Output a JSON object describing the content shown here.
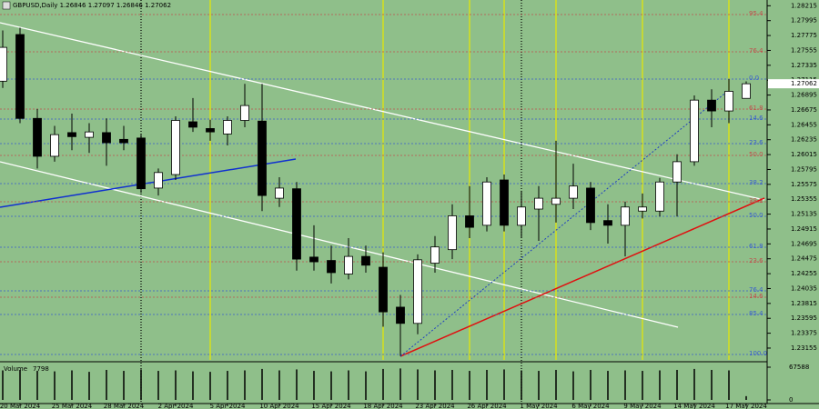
{
  "chart_data": {
    "type": "candlestick",
    "title": "GBPUSD,Daily  1.26846 1.27097 1.26846 1.27062",
    "categories": [
      null,
      "20 Mar 2024",
      null,
      null,
      "25 Mar 2024",
      null,
      null,
      "28 Mar 2024",
      null,
      null,
      "2 Apr 2024",
      null,
      null,
      "5 Apr 2024",
      null,
      null,
      "10 Apr 2024",
      null,
      null,
      "15 Apr 2024",
      null,
      null,
      "18 Apr 2024",
      null,
      null,
      "23 Apr 2024",
      null,
      null,
      "26 Apr 2024",
      null,
      null,
      "1 May 2024",
      null,
      null,
      "6 May 2024",
      null,
      null,
      "9 May 2024",
      null,
      null,
      "14 May 2024",
      null,
      null,
      "17 May 2024"
    ],
    "open": [
      1.271,
      1.2779,
      1.2655,
      1.2599,
      1.2634,
      1.2627,
      1.2634,
      1.2624,
      1.2626,
      1.2552,
      1.2572,
      1.265,
      1.264,
      1.2632,
      1.2652,
      1.2651,
      1.2537,
      1.2551,
      1.245,
      1.2445,
      1.2425,
      1.2451,
      1.2435,
      1.2376,
      1.2352,
      1.2441,
      1.2461,
      1.2511,
      1.2497,
      1.2564,
      1.2497,
      1.2521,
      1.2528,
      1.2537,
      1.2552,
      1.2504,
      1.2497,
      1.2518,
      1.2518,
      1.2561,
      1.2591,
      1.2682,
      1.2666,
      1.26846
    ],
    "high": [
      1.2785,
      1.2789,
      1.2669,
      1.2644,
      1.2662,
      1.2648,
      1.2655,
      1.2644,
      1.2631,
      1.2581,
      1.2658,
      1.2685,
      1.2653,
      1.2658,
      1.2706,
      1.2706,
      1.2568,
      1.2561,
      1.2497,
      1.2467,
      1.2478,
      1.2467,
      1.2457,
      1.2394,
      1.2454,
      1.2481,
      1.2528,
      1.2555,
      1.2568,
      1.2572,
      1.2548,
      1.2555,
      1.2622,
      1.2588,
      1.2561,
      1.2528,
      1.2532,
      1.2544,
      1.2567,
      1.2602,
      1.2689,
      1.2698,
      1.2713,
      1.27097
    ],
    "low": [
      1.27,
      1.2648,
      1.2581,
      1.2591,
      1.2608,
      1.2604,
      1.2585,
      1.2608,
      1.2545,
      1.2541,
      1.2564,
      1.2635,
      1.2622,
      1.2615,
      1.2642,
      1.2518,
      1.2524,
      1.243,
      1.243,
      1.2411,
      1.2417,
      1.2427,
      1.2347,
      1.2304,
      1.2336,
      1.2427,
      1.2447,
      1.2478,
      1.2488,
      1.2488,
      1.2478,
      1.2474,
      1.2501,
      1.2521,
      1.249,
      1.247,
      1.2451,
      1.2507,
      1.251,
      1.251,
      1.2585,
      1.2642,
      1.2648,
      1.26846
    ],
    "close": [
      1.276,
      1.2655,
      1.2599,
      1.2631,
      1.2628,
      1.2635,
      1.2619,
      1.2619,
      1.2551,
      1.2575,
      1.2652,
      1.2642,
      1.2635,
      1.2652,
      1.2674,
      1.2541,
      1.2552,
      1.2447,
      1.2443,
      1.2427,
      1.2451,
      1.2438,
      1.2369,
      1.2352,
      1.2446,
      1.2465,
      1.2511,
      1.2494,
      1.2561,
      1.2497,
      1.2524,
      1.2537,
      1.2537,
      1.2555,
      1.2501,
      1.2497,
      1.2524,
      1.2524,
      1.2561,
      1.2591,
      1.2682,
      1.2666,
      1.2695,
      1.27062
    ],
    "ylim": [
      1.2298,
      1.283
    ],
    "yticks": [
      1.28215,
      1.27995,
      1.27775,
      1.27555,
      1.27335,
      1.27115,
      1.26895,
      1.26675,
      1.26455,
      1.26235,
      1.26015,
      1.25795,
      1.25575,
      1.25355,
      1.25135,
      1.24915,
      1.24695,
      1.24475,
      1.24255,
      1.24035,
      1.23815,
      1.23595,
      1.23375,
      1.23155
    ],
    "bull_color": "#ffffff",
    "bear_color": "#000000",
    "background": "#8fbf8a",
    "volume_title": "Volume",
    "volume": [
      61000,
      62000,
      60000,
      59000,
      61000,
      58000,
      62000,
      60000,
      63000,
      60000,
      61000,
      59000,
      58000,
      60000,
      61000,
      64000,
      61000,
      63000,
      60000,
      59000,
      61000,
      59000,
      64000,
      65000,
      63000,
      61000,
      62000,
      60000,
      62000,
      63000,
      61000,
      60000,
      62000,
      59000,
      62000,
      60000,
      61000,
      60000,
      61000,
      62000,
      64000,
      62000,
      61000,
      7798
    ],
    "volume_ylim": [
      0,
      67588
    ],
    "volume_yticks": [
      0,
      67588
    ],
    "annotations": [
      {
        "text": "95.4",
        "y": 1.28085,
        "color": "#c0504d"
      },
      {
        "text": "76.4",
        "y": 1.27534,
        "color": "#c0504d"
      },
      {
        "text": "0.0",
        "y": 1.27131,
        "color": "#3a5fcd"
      },
      {
        "text": "61.8",
        "y": 1.26688,
        "color": "#c0504d"
      },
      {
        "text": "14.6",
        "y": 1.2654,
        "color": "#3a5fcd"
      },
      {
        "text": "23.6",
        "y": 1.26177,
        "color": "#3a5fcd"
      },
      {
        "text": "50.0",
        "y": 1.26003,
        "color": "#c0504d"
      },
      {
        "text": "38.2",
        "y": 1.25586,
        "color": "#3a5fcd"
      },
      {
        "text": "38.2",
        "y": 1.25318,
        "color": "#c0504d"
      },
      {
        "text": "50.0",
        "y": 1.25103,
        "color": "#3a5fcd"
      },
      {
        "text": "61.8",
        "y": 1.24646,
        "color": "#3a5fcd"
      },
      {
        "text": "23.6",
        "y": 1.24431,
        "color": "#c0504d"
      },
      {
        "text": "76.4",
        "y": 1.24001,
        "color": "#3a5fcd"
      },
      {
        "text": "14.6",
        "y": 1.23907,
        "color": "#c0504d"
      },
      {
        "text": "85.4",
        "y": 1.23652,
        "color": "#3a5fcd"
      },
      {
        "text": "100.0",
        "y": 1.23061,
        "color": "#3a5fcd"
      }
    ]
  }
}
